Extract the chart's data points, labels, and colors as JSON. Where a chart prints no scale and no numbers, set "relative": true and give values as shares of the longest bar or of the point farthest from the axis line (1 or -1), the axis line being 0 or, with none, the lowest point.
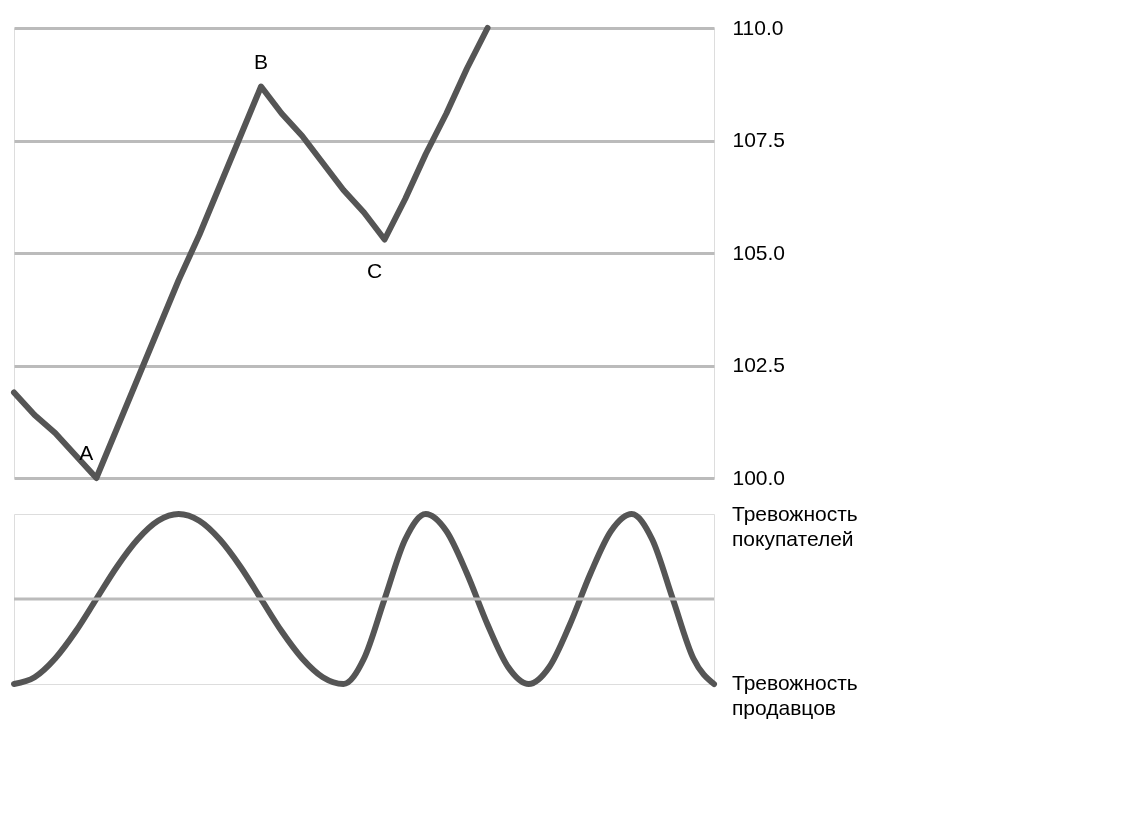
{
  "chart_data": [
    {
      "type": "line",
      "categories": [
        null,
        null,
        null,
        null,
        null,
        null,
        null,
        null,
        null,
        null,
        null,
        null,
        null,
        null,
        null,
        null,
        null,
        null,
        null,
        null,
        null,
        null,
        null,
        null,
        null,
        null,
        null,
        null,
        null,
        null,
        null,
        null,
        null,
        null,
        null
      ],
      "series": [
        {
          "color": "#555555",
          "values": [
            101.9,
            101.4,
            101.0,
            100.5,
            100.0,
            101.1,
            102.2,
            103.3,
            104.4,
            105.4,
            106.5,
            107.6,
            108.7,
            108.1,
            107.6,
            107.0,
            106.4,
            105.9,
            105.3,
            106.2,
            107.2,
            108.1,
            109.1,
            110.0,
            null,
            null,
            null,
            null,
            null,
            null,
            null,
            null,
            null,
            null,
            null
          ]
        }
      ],
      "ylim": [
        100,
        110
      ],
      "yticks": [
        {
          "value": 100,
          "label": "100.0"
        },
        {
          "value": 102.5,
          "label": "102.5"
        },
        {
          "value": 105,
          "label": "105.0"
        },
        {
          "value": 107.5,
          "label": "107.5"
        },
        {
          "value": 110,
          "label": "110.0"
        }
      ],
      "grid": "y",
      "tick_labels": "y",
      "annotations": [
        "A",
        "B",
        "C"
      ]
    },
    {
      "type": "line",
      "relative": true,
      "categories": [
        null,
        null,
        null,
        null,
        null,
        null,
        null,
        null,
        null,
        null,
        null,
        null,
        null,
        null,
        null,
        null,
        null,
        null,
        null,
        null,
        null,
        null,
        null,
        null,
        null,
        null,
        null,
        null,
        null,
        null,
        null,
        null,
        null,
        null,
        null
      ],
      "series": [
        {
          "color": "#555555",
          "values": [
            0,
            0.04,
            0.15,
            0.31,
            0.5,
            0.69,
            0.85,
            0.96,
            1,
            0.96,
            0.85,
            0.69,
            0.5,
            0.31,
            0.15,
            0.04,
            0,
            0.15,
            0.5,
            0.85,
            1,
            0.9,
            0.65,
            0.35,
            0.1,
            0,
            0.1,
            0.35,
            0.65,
            0.9,
            1,
            0.85,
            0.5,
            0.15,
            0
          ]
        }
      ],
      "tick_labels": false,
      "ref_lines": [
        {
          "axis": "y",
          "value": 0.5,
          "color": "#bbbbbb"
        }
      ],
      "annotations": [
        "Тревожность\nпокупателей",
        "Тревожность\nпродавцов"
      ]
    }
  ]
}
